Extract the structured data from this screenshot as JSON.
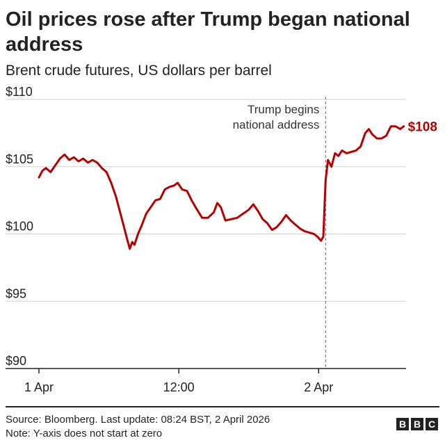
{
  "title": "Oil prices rose after Trump began national address",
  "subtitle": "Brent crude futures, US dollars per barrel",
  "footer": {
    "source": "Source: Bloomberg. Last update: 08:24 BST, 2 April 2026",
    "note": "Note: Y-axis does not start at zero"
  },
  "logo": {
    "letters": [
      "B",
      "B",
      "C"
    ]
  },
  "colors": {
    "line": "#b80000",
    "text": "#222222",
    "grid": "#d0d0d0",
    "annotation_line": "#666666"
  },
  "chart_data": {
    "type": "line",
    "x_unit": "hours since 1 Apr 00:00",
    "xlim": [
      0,
      31.5
    ],
    "ylim": [
      90,
      110
    ],
    "grid": true,
    "y_ticks": [
      {
        "value": 110,
        "label": "$110"
      },
      {
        "value": 105,
        "label": "$105"
      },
      {
        "value": 100,
        "label": "$100"
      },
      {
        "value": 95,
        "label": "$95"
      },
      {
        "value": 90,
        "label": "$90"
      }
    ],
    "x_ticks": [
      {
        "value": 0,
        "label": "1 Apr"
      },
      {
        "value": 12,
        "label": "12:00"
      },
      {
        "value": 24,
        "label": "2 Apr"
      }
    ],
    "series": [
      {
        "name": "",
        "color": "#b80000",
        "points": [
          [
            0,
            104.2
          ],
          [
            0.3,
            104.7
          ],
          [
            0.6,
            104.9
          ],
          [
            1.0,
            104.6
          ],
          [
            1.4,
            105.1
          ],
          [
            1.8,
            105.6
          ],
          [
            2.2,
            105.9
          ],
          [
            2.6,
            105.5
          ],
          [
            3.0,
            105.7
          ],
          [
            3.4,
            105.4
          ],
          [
            3.8,
            105.6
          ],
          [
            4.2,
            105.3
          ],
          [
            4.6,
            105.5
          ],
          [
            5.0,
            105.3
          ],
          [
            5.4,
            104.9
          ],
          [
            5.8,
            104.6
          ],
          [
            6.2,
            103.8
          ],
          [
            6.6,
            102.8
          ],
          [
            7.0,
            101.5
          ],
          [
            7.3,
            100.5
          ],
          [
            7.6,
            99.5
          ],
          [
            7.8,
            98.9
          ],
          [
            8.0,
            99.4
          ],
          [
            8.2,
            99.2
          ],
          [
            8.5,
            100.0
          ],
          [
            8.8,
            100.6
          ],
          [
            9.2,
            101.5
          ],
          [
            9.6,
            102.0
          ],
          [
            10.0,
            102.5
          ],
          [
            10.4,
            102.6
          ],
          [
            10.8,
            103.3
          ],
          [
            11.2,
            103.5
          ],
          [
            11.6,
            103.6
          ],
          [
            11.9,
            103.8
          ],
          [
            12.3,
            103.3
          ],
          [
            12.7,
            103.2
          ],
          [
            13.1,
            102.5
          ],
          [
            13.5,
            101.9
          ],
          [
            14.0,
            101.2
          ],
          [
            14.5,
            101.2
          ],
          [
            15.0,
            101.6
          ],
          [
            15.3,
            102.3
          ],
          [
            15.6,
            102.0
          ],
          [
            16.0,
            101.0
          ],
          [
            16.5,
            101.1
          ],
          [
            17.0,
            101.2
          ],
          [
            17.5,
            101.5
          ],
          [
            18.0,
            101.8
          ],
          [
            18.4,
            102.2
          ],
          [
            18.8,
            101.7
          ],
          [
            19.2,
            101.1
          ],
          [
            19.6,
            100.8
          ],
          [
            20.0,
            100.3
          ],
          [
            20.4,
            100.5
          ],
          [
            20.8,
            100.9
          ],
          [
            21.2,
            101.4
          ],
          [
            21.6,
            101.0
          ],
          [
            22.0,
            100.7
          ],
          [
            22.4,
            100.4
          ],
          [
            22.8,
            100.2
          ],
          [
            23.2,
            100.1
          ],
          [
            23.6,
            100.0
          ],
          [
            23.9,
            99.8
          ],
          [
            24.2,
            99.5
          ],
          [
            24.4,
            99.8
          ],
          [
            24.5,
            102.0
          ],
          [
            24.6,
            104.0
          ],
          [
            24.8,
            105.5
          ],
          [
            25.1,
            105.0
          ],
          [
            25.4,
            106.0
          ],
          [
            25.7,
            105.8
          ],
          [
            26.0,
            106.2
          ],
          [
            26.4,
            106.0
          ],
          [
            26.8,
            106.1
          ],
          [
            27.2,
            106.2
          ],
          [
            27.6,
            106.5
          ],
          [
            28.0,
            107.5
          ],
          [
            28.3,
            107.8
          ],
          [
            28.6,
            107.4
          ],
          [
            29.0,
            107.1
          ],
          [
            29.4,
            107.1
          ],
          [
            29.8,
            107.3
          ],
          [
            30.2,
            108.0
          ],
          [
            30.6,
            108.0
          ],
          [
            31.0,
            107.8
          ],
          [
            31.3,
            108.0
          ]
        ]
      }
    ],
    "last_value_label": "$108",
    "annotation": {
      "x": 24.6,
      "lines": [
        "Trump begins",
        "national address"
      ]
    }
  }
}
